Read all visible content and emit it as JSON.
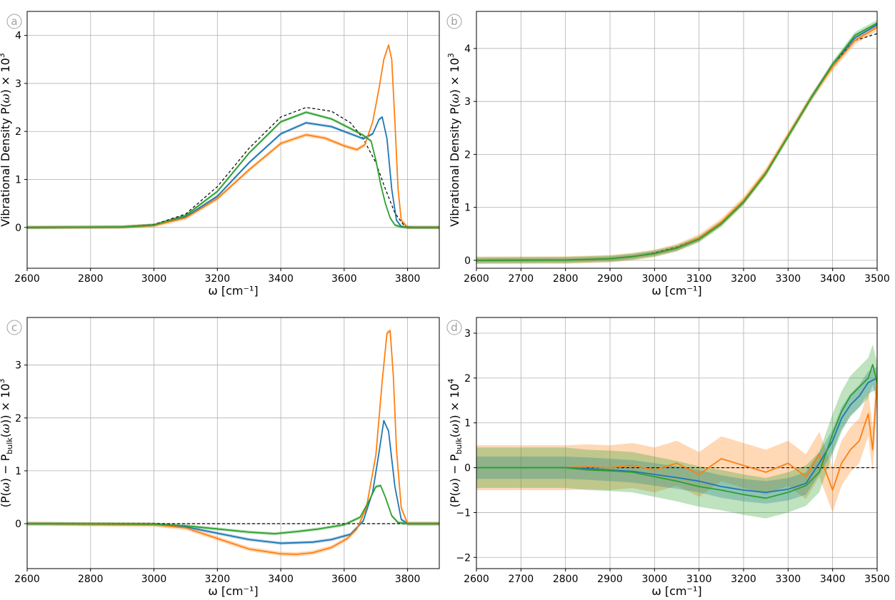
{
  "colors": {
    "blue": "#1f77b4",
    "orange": "#ff7f0e",
    "green": "#2ca02c",
    "reference": "#000000",
    "grid": "#b0b0b0"
  },
  "chart_data": [
    {
      "panel_label": "a",
      "type": "line",
      "xlabel": "ω [cm⁻¹]",
      "ylabel": {
        "prefix": "Vibrational Density P(",
        "omega": "ω",
        "suffix": ") × 10",
        "exp": "3"
      },
      "xlim": [
        2600,
        3900
      ],
      "ylim": [
        -0.85,
        4.5
      ],
      "grid": true,
      "xticks": [
        2600,
        2800,
        3000,
        3200,
        3400,
        3600,
        3800
      ],
      "xtick_labels": [
        "2600",
        "2800",
        "3000",
        "3200",
        "3400",
        "3600",
        "3800"
      ],
      "yticks": [
        0,
        1,
        2,
        3,
        4
      ],
      "ytick_labels": [
        "0",
        "1",
        "2",
        "3",
        "4"
      ],
      "reference": {
        "style": "dashed",
        "x": [
          2600,
          2900,
          3000,
          3100,
          3200,
          3300,
          3400,
          3480,
          3560,
          3620,
          3660,
          3700,
          3730,
          3760,
          3790,
          3820,
          3900
        ],
        "y": [
          0,
          0.01,
          0.06,
          0.28,
          0.85,
          1.65,
          2.3,
          2.5,
          2.42,
          2.18,
          1.85,
          1.35,
          0.8,
          0.3,
          0.03,
          0,
          0
        ]
      },
      "series": [
        {
          "color": "blue",
          "x": [
            2600,
            2900,
            3000,
            3100,
            3200,
            3300,
            3400,
            3480,
            3560,
            3620,
            3660,
            3690,
            3710,
            3720,
            3735,
            3750,
            3765,
            3780,
            3800,
            3900
          ],
          "y": [
            0,
            0.01,
            0.05,
            0.22,
            0.65,
            1.35,
            1.95,
            2.18,
            2.1,
            1.95,
            1.85,
            1.95,
            2.25,
            2.3,
            1.85,
            0.8,
            0.15,
            0.02,
            0,
            0
          ],
          "band": 0.03
        },
        {
          "color": "orange",
          "x": [
            2600,
            2900,
            3000,
            3100,
            3200,
            3300,
            3400,
            3480,
            3540,
            3600,
            3640,
            3665,
            3690,
            3710,
            3725,
            3740,
            3750,
            3760,
            3770,
            3780,
            3800,
            3900
          ],
          "y": [
            0,
            0.01,
            0.04,
            0.2,
            0.6,
            1.2,
            1.75,
            1.93,
            1.86,
            1.7,
            1.62,
            1.72,
            2.2,
            2.9,
            3.5,
            3.8,
            3.5,
            2.2,
            0.8,
            0.15,
            0,
            0
          ],
          "band": 0.04
        },
        {
          "color": "green",
          "x": [
            2600,
            2900,
            3000,
            3100,
            3200,
            3300,
            3400,
            3480,
            3560,
            3620,
            3660,
            3685,
            3700,
            3715,
            3730,
            3745,
            3760,
            3780,
            3800,
            3900
          ],
          "y": [
            0,
            0.01,
            0.05,
            0.25,
            0.75,
            1.55,
            2.2,
            2.4,
            2.26,
            2.06,
            1.92,
            1.8,
            1.4,
            0.9,
            0.5,
            0.2,
            0.05,
            0.01,
            0,
            0
          ],
          "band": 0.03
        }
      ]
    },
    {
      "panel_label": "b",
      "type": "line",
      "xlabel": "ω [cm⁻¹]",
      "ylabel": {
        "prefix": "Vibrational Density P(",
        "omega": "ω",
        "suffix": ") × 10",
        "exp": "3"
      },
      "xlim": [
        2600,
        3500
      ],
      "ylim": [
        -0.15,
        4.7
      ],
      "grid": true,
      "xticks": [
        2600,
        2700,
        2800,
        2900,
        3000,
        3100,
        3200,
        3300,
        3400,
        3500
      ],
      "xtick_labels": [
        "2600",
        "2700",
        "2800",
        "2900",
        "3000",
        "3100",
        "3200",
        "3300",
        "3400",
        "3500"
      ],
      "yticks": [
        0,
        1,
        2,
        3,
        4
      ],
      "ytick_labels": [
        "0",
        "1",
        "2",
        "3",
        "4"
      ],
      "reference": {
        "style": "dashed",
        "x": [
          2600,
          2800,
          2900,
          2950,
          3000,
          3050,
          3100,
          3150,
          3200,
          3250,
          3300,
          3350,
          3400,
          3450,
          3500
        ],
        "y": [
          0,
          0.005,
          0.03,
          0.07,
          0.14,
          0.25,
          0.42,
          0.72,
          1.12,
          1.65,
          2.35,
          3.05,
          3.7,
          4.15,
          4.28
        ]
      },
      "series": [
        {
          "color": "blue",
          "x": [
            2600,
            2800,
            2900,
            2950,
            3000,
            3050,
            3100,
            3150,
            3200,
            3250,
            3300,
            3350,
            3400,
            3450,
            3500
          ],
          "y": [
            0,
            0.005,
            0.03,
            0.07,
            0.13,
            0.23,
            0.4,
            0.7,
            1.1,
            1.65,
            2.35,
            3.05,
            3.7,
            4.2,
            4.45
          ],
          "band": 0.04
        },
        {
          "color": "orange",
          "x": [
            2600,
            2800,
            2900,
            2950,
            3000,
            3050,
            3100,
            3150,
            3200,
            3250,
            3300,
            3350,
            3400,
            3450,
            3500
          ],
          "y": [
            0,
            0.005,
            0.03,
            0.07,
            0.13,
            0.24,
            0.42,
            0.72,
            1.13,
            1.67,
            2.36,
            3.05,
            3.65,
            4.15,
            4.4
          ],
          "band": 0.07
        },
        {
          "color": "green",
          "x": [
            2600,
            2800,
            2900,
            2950,
            3000,
            3050,
            3100,
            3150,
            3200,
            3250,
            3300,
            3350,
            3400,
            3450,
            3500
          ],
          "y": [
            0,
            0.005,
            0.03,
            0.07,
            0.13,
            0.23,
            0.4,
            0.69,
            1.1,
            1.64,
            2.34,
            3.04,
            3.7,
            4.25,
            4.48
          ],
          "band": 0.06
        }
      ]
    },
    {
      "panel_label": "c",
      "type": "line",
      "xlabel": "ω [cm⁻¹]",
      "ylabel": {
        "prefix": "(P(",
        "omega": "ω",
        "mid": ") − P",
        "sub": "bulk",
        "mid2": "(",
        "omega2": "ω",
        "suffix": ")) × 10",
        "exp": "3"
      },
      "xlim": [
        2600,
        3900
      ],
      "ylim": [
        -0.85,
        3.9
      ],
      "grid": true,
      "xticks": [
        2600,
        2800,
        3000,
        3200,
        3400,
        3600,
        3800
      ],
      "xtick_labels": [
        "2600",
        "2800",
        "3000",
        "3200",
        "3400",
        "3600",
        "3800"
      ],
      "yticks": [
        0,
        1,
        2,
        3
      ],
      "ytick_labels": [
        "0",
        "1",
        "2",
        "3"
      ],
      "reference": {
        "style": "dashed",
        "x": [
          2600,
          3900
        ],
        "y": [
          0,
          0
        ]
      },
      "series": [
        {
          "color": "blue",
          "x": [
            2600,
            3000,
            3100,
            3200,
            3300,
            3400,
            3500,
            3560,
            3620,
            3660,
            3690,
            3710,
            3725,
            3740,
            3760,
            3780,
            3800,
            3900
          ],
          "y": [
            0,
            -0.01,
            -0.06,
            -0.18,
            -0.3,
            -0.37,
            -0.35,
            -0.3,
            -0.2,
            0.05,
            0.6,
            1.35,
            1.95,
            1.75,
            0.7,
            0.08,
            0,
            0
          ],
          "band": 0.03
        },
        {
          "color": "orange",
          "x": [
            2600,
            3000,
            3100,
            3200,
            3300,
            3400,
            3450,
            3500,
            3560,
            3610,
            3640,
            3670,
            3700,
            3720,
            3735,
            3745,
            3755,
            3765,
            3780,
            3800,
            3900
          ],
          "y": [
            0,
            -0.02,
            -0.08,
            -0.28,
            -0.48,
            -0.57,
            -0.58,
            -0.55,
            -0.45,
            -0.28,
            -0.1,
            0.3,
            1.3,
            2.7,
            3.6,
            3.65,
            2.8,
            1.4,
            0.3,
            0,
            0
          ],
          "band": 0.04
        },
        {
          "color": "green",
          "x": [
            2600,
            3000,
            3100,
            3200,
            3300,
            3380,
            3450,
            3520,
            3600,
            3650,
            3680,
            3700,
            3715,
            3730,
            3750,
            3770,
            3800,
            3900
          ],
          "y": [
            0,
            -0.01,
            -0.04,
            -0.1,
            -0.16,
            -0.19,
            -0.15,
            -0.1,
            -0.02,
            0.12,
            0.45,
            0.7,
            0.72,
            0.5,
            0.15,
            0.02,
            0,
            0
          ],
          "band": 0.03
        }
      ]
    },
    {
      "panel_label": "d",
      "type": "line",
      "xlabel": "ω [cm⁻¹]",
      "ylabel": {
        "prefix": "(P(",
        "omega": "ω",
        "mid": ") − P",
        "sub": "bulk",
        "mid2": "(",
        "omega2": "ω",
        "suffix": ")) × 10",
        "exp": "4"
      },
      "xlim": [
        2600,
        3500
      ],
      "ylim": [
        -2.25,
        3.35
      ],
      "grid": true,
      "xticks": [
        2600,
        2700,
        2800,
        2900,
        3000,
        3100,
        3200,
        3300,
        3400,
        3500
      ],
      "xtick_labels": [
        "2600",
        "2700",
        "2800",
        "2900",
        "3000",
        "3100",
        "3200",
        "3300",
        "3400",
        "3500"
      ],
      "yticks": [
        -2,
        -1,
        0,
        1,
        2,
        3
      ],
      "ytick_labels": [
        "−2",
        "−1",
        "0",
        "1",
        "2",
        "3"
      ],
      "reference": {
        "style": "dashed",
        "x": [
          2600,
          3500
        ],
        "y": [
          0,
          0
        ]
      },
      "series": [
        {
          "color": "orange",
          "x": [
            2600,
            2800,
            2850,
            2900,
            2950,
            3000,
            3050,
            3100,
            3150,
            3200,
            3250,
            3300,
            3340,
            3370,
            3400,
            3420,
            3440,
            3460,
            3480,
            3490,
            3500
          ],
          "y": [
            0,
            0,
            0.02,
            0,
            0.05,
            -0.05,
            0.1,
            -0.15,
            0.2,
            0.05,
            -0.1,
            0.1,
            -0.2,
            0.3,
            -0.5,
            0.1,
            0.4,
            0.6,
            1.2,
            0.4,
            1.95
          ],
          "band": 0.5
        },
        {
          "color": "blue",
          "x": [
            2600,
            2800,
            2850,
            2900,
            2950,
            3000,
            3050,
            3100,
            3150,
            3200,
            3250,
            3300,
            3340,
            3370,
            3400,
            3420,
            3440,
            3460,
            3480,
            3500
          ],
          "y": [
            0,
            0,
            -0.02,
            -0.05,
            -0.08,
            -0.15,
            -0.22,
            -0.3,
            -0.42,
            -0.5,
            -0.55,
            -0.48,
            -0.35,
            0.1,
            0.6,
            1.1,
            1.4,
            1.6,
            1.9,
            2.0
          ],
          "band": 0.25
        },
        {
          "color": "green",
          "x": [
            2600,
            2800,
            2850,
            2900,
            2950,
            3000,
            3050,
            3100,
            3150,
            3200,
            3250,
            3300,
            3340,
            3370,
            3400,
            3420,
            3440,
            3460,
            3480,
            3490,
            3500
          ],
          "y": [
            0,
            0,
            -0.05,
            -0.07,
            -0.1,
            -0.2,
            -0.3,
            -0.42,
            -0.5,
            -0.6,
            -0.68,
            -0.55,
            -0.4,
            -0.1,
            0.75,
            1.25,
            1.6,
            1.8,
            2.0,
            2.3,
            1.9
          ],
          "band": 0.45
        }
      ]
    }
  ]
}
